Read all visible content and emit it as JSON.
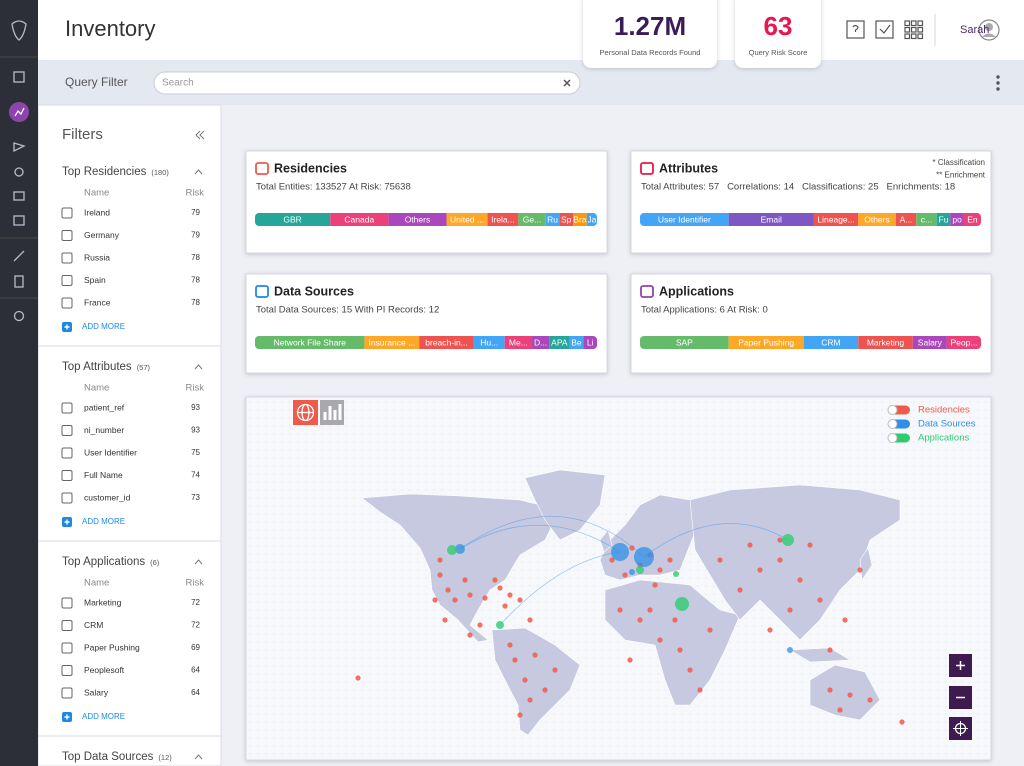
{
  "header": {
    "title": "Inventory",
    "kpis": [
      {
        "value": "1.27M",
        "label": "Personal Data Records Found"
      },
      {
        "value": "63",
        "label": "Query Risk Score"
      }
    ],
    "user": "Sarah"
  },
  "query_bar": {
    "label": "Query Filter",
    "search_placeholder": "Search"
  },
  "filters": {
    "title": "Filters",
    "name_header": "Name",
    "risk_header": "Risk",
    "add_more": "ADD MORE",
    "sections": [
      {
        "title": "Top Residencies",
        "count": "(180)",
        "items": [
          {
            "name": "Ireland",
            "risk": 79
          },
          {
            "name": "Germany",
            "risk": 79
          },
          {
            "name": "Russia",
            "risk": 78
          },
          {
            "name": "Spain",
            "risk": 78
          },
          {
            "name": "France",
            "risk": 78
          }
        ]
      },
      {
        "title": "Top Attributes",
        "count": "(57)",
        "items": [
          {
            "name": "patient_ref",
            "risk": 93
          },
          {
            "name": "ni_number",
            "risk": 93
          },
          {
            "name": "User Identifier",
            "risk": 75
          },
          {
            "name": "Full Name",
            "risk": 74
          },
          {
            "name": "customer_id",
            "risk": 73
          }
        ]
      },
      {
        "title": "Top Applications",
        "count": "(6)",
        "items": [
          {
            "name": "Marketing",
            "risk": 72
          },
          {
            "name": "CRM",
            "risk": 72
          },
          {
            "name": "Paper Pushing",
            "risk": 69
          },
          {
            "name": "Peoplesoft",
            "risk": 64
          },
          {
            "name": "Salary",
            "risk": 64
          }
        ]
      },
      {
        "title": "Top Data Sources",
        "count": "(12)",
        "items": []
      }
    ]
  },
  "cards": [
    {
      "title": "Residencies",
      "summary": "Total Entities: 133527 At Risk: 75638",
      "notes": [],
      "segments": [
        {
          "label": "GBR",
          "share": 22,
          "color": "#26a69a"
        },
        {
          "label": "Canada",
          "share": 17,
          "color": "#ec407a"
        },
        {
          "label": "Others",
          "share": 17,
          "color": "#ab47bc"
        },
        {
          "label": "United ...",
          "share": 12,
          "color": "#ffa726"
        },
        {
          "label": "Irela...",
          "share": 9,
          "color": "#ef5350"
        },
        {
          "label": "Ge...",
          "share": 8,
          "color": "#66bb6a"
        },
        {
          "label": "Ru",
          "share": 4,
          "color": "#42a5f5"
        },
        {
          "label": "Sp",
          "share": 4,
          "color": "#ef5350"
        },
        {
          "label": "Bra",
          "share": 4,
          "color": "#ff9800"
        },
        {
          "label": "Ja",
          "share": 3,
          "color": "#42a5f5"
        }
      ]
    },
    {
      "title": "Attributes",
      "summary": "Total Attributes: 57   Correlations: 14   Classifications: 25   Enrichments: 18",
      "notes": [
        "* Classification",
        "** Enrichment"
      ],
      "segments": [
        {
          "label": "User Identifier",
          "share": 26,
          "color": "#42a5f5"
        },
        {
          "label": "Email",
          "share": 25,
          "color": "#7e57c2"
        },
        {
          "label": "Lineage...",
          "share": 13,
          "color": "#ef5350"
        },
        {
          "label": "Others",
          "share": 11,
          "color": "#ffa726"
        },
        {
          "label": "A...",
          "share": 6,
          "color": "#ef5350"
        },
        {
          "label": "c...",
          "share": 6,
          "color": "#66bb6a"
        },
        {
          "label": "Fu",
          "share": 4,
          "color": "#26a69a"
        },
        {
          "label": "po",
          "share": 4,
          "color": "#ab47bc"
        },
        {
          "label": "En",
          "share": 5,
          "color": "#ec407a"
        }
      ]
    },
    {
      "title": "Data Sources",
      "summary": "Total Data Sources: 15 With PI Records: 12",
      "notes": [],
      "segments": [
        {
          "label": "Network File Share",
          "share": 32,
          "color": "#66bb6a"
        },
        {
          "label": "Insurance ...",
          "share": 16,
          "color": "#ffa726"
        },
        {
          "label": "breach-in...",
          "share": 16,
          "color": "#ef5350"
        },
        {
          "label": "Hu...",
          "share": 9,
          "color": "#42a5f5"
        },
        {
          "label": "Me...",
          "share": 8,
          "color": "#ec407a"
        },
        {
          "label": "D...",
          "share": 5,
          "color": "#ab47bc"
        },
        {
          "label": "APA",
          "share": 6,
          "color": "#26a69a"
        },
        {
          "label": "Be",
          "share": 4,
          "color": "#42a5f5"
        },
        {
          "label": "Li",
          "share": 4,
          "color": "#ab47bc"
        }
      ]
    },
    {
      "title": "Applications",
      "summary": "Total Applications: 6 At Risk: 0",
      "notes": [],
      "segments": [
        {
          "label": "SAP",
          "share": 26,
          "color": "#66bb6a"
        },
        {
          "label": "Paper Pushing",
          "share": 22,
          "color": "#ffa726"
        },
        {
          "label": "CRM",
          "share": 16,
          "color": "#42a5f5"
        },
        {
          "label": "Marketing",
          "share": 16,
          "color": "#ef5350"
        },
        {
          "label": "Salary",
          "share": 10,
          "color": "#ab47bc"
        },
        {
          "label": "Peop...",
          "share": 10,
          "color": "#ec407a"
        }
      ]
    }
  ],
  "map": {
    "legend": [
      {
        "label": "Residencies",
        "color": "#f05a4a"
      },
      {
        "label": "Data Sources",
        "color": "#2f8fe8"
      },
      {
        "label": "Applications",
        "color": "#2ecc71"
      }
    ]
  }
}
